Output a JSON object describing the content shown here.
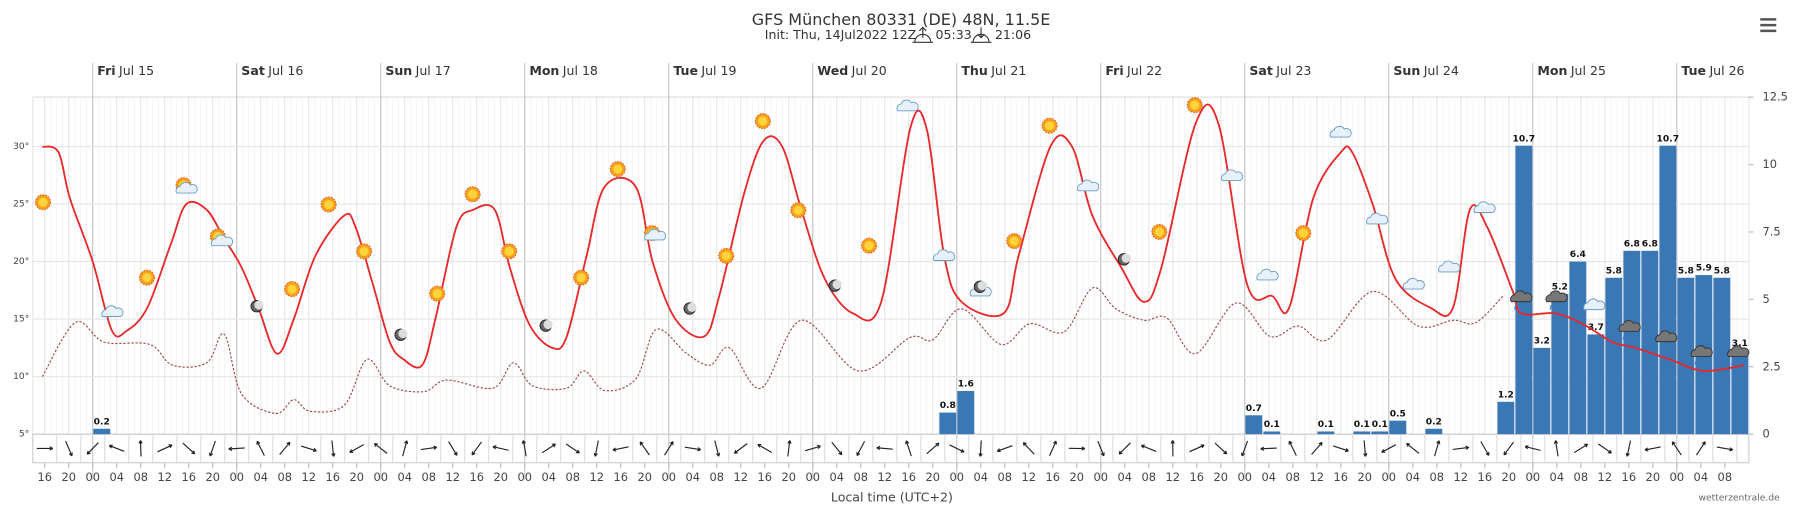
{
  "chart_data": {
    "type": "meteogram",
    "title": "GFS München 80331 (DE) 48N, 11.5E",
    "subtitle": "Init: Thu, 14Jul2022 12Z",
    "sunrise": "05:33",
    "sunset": "21:06",
    "x_label": "Local time (UTC+2)",
    "credit": "wetterzentrale.de",
    "xlim": [
      14,
      300
    ],
    "days": [
      {
        "value": 24,
        "weekday": "Fri",
        "date": "Jul 15"
      },
      {
        "value": 48,
        "weekday": "Sat",
        "date": "Jul 16"
      },
      {
        "value": 72,
        "weekday": "Sun",
        "date": "Jul 17"
      },
      {
        "value": 96,
        "weekday": "Mon",
        "date": "Jul 18"
      },
      {
        "value": 120,
        "weekday": "Tue",
        "date": "Jul 19"
      },
      {
        "value": 144,
        "weekday": "Wed",
        "date": "Jul 20"
      },
      {
        "value": 168,
        "weekday": "Thu",
        "date": "Jul 21"
      },
      {
        "value": 192,
        "weekday": "Fri",
        "date": "Jul 22"
      },
      {
        "value": 216,
        "weekday": "Sat",
        "date": "Jul 23"
      },
      {
        "value": 240,
        "weekday": "Sun",
        "date": "Jul 24"
      },
      {
        "value": 264,
        "weekday": "Mon",
        "date": "Jul 25"
      },
      {
        "value": 288,
        "weekday": "Tue",
        "date": "Jul 26"
      }
    ],
    "xticks": [
      {
        "value": 16,
        "label": "16"
      },
      {
        "value": 20,
        "label": "20"
      },
      {
        "value": 24,
        "label": "00"
      },
      {
        "value": 28,
        "label": "04"
      },
      {
        "value": 32,
        "label": "08"
      },
      {
        "value": 36,
        "label": "12"
      },
      {
        "value": 40,
        "label": "16"
      },
      {
        "value": 44,
        "label": "20"
      },
      {
        "value": 48,
        "label": "00"
      },
      {
        "value": 52,
        "label": "04"
      },
      {
        "value": 56,
        "label": "08"
      },
      {
        "value": 60,
        "label": "12"
      },
      {
        "value": 64,
        "label": "16"
      },
      {
        "value": 68,
        "label": "20"
      },
      {
        "value": 72,
        "label": "00"
      },
      {
        "value": 76,
        "label": "04"
      },
      {
        "value": 80,
        "label": "08"
      },
      {
        "value": 84,
        "label": "12"
      },
      {
        "value": 88,
        "label": "16"
      },
      {
        "value": 92,
        "label": "20"
      },
      {
        "value": 96,
        "label": "00"
      },
      {
        "value": 100,
        "label": "04"
      },
      {
        "value": 104,
        "label": "08"
      },
      {
        "value": 108,
        "label": "12"
      },
      {
        "value": 112,
        "label": "16"
      },
      {
        "value": 116,
        "label": "20"
      },
      {
        "value": 120,
        "label": "00"
      },
      {
        "value": 124,
        "label": "04"
      },
      {
        "value": 128,
        "label": "08"
      },
      {
        "value": 132,
        "label": "12"
      },
      {
        "value": 136,
        "label": "16"
      },
      {
        "value": 140,
        "label": "20"
      },
      {
        "value": 144,
        "label": "00"
      },
      {
        "value": 148,
        "label": "04"
      },
      {
        "value": 152,
        "label": "08"
      },
      {
        "value": 156,
        "label": "12"
      },
      {
        "value": 160,
        "label": "16"
      },
      {
        "value": 164,
        "label": "20"
      },
      {
        "value": 168,
        "label": "00"
      },
      {
        "value": 172,
        "label": "04"
      },
      {
        "value": 176,
        "label": "08"
      },
      {
        "value": 180,
        "label": "12"
      },
      {
        "value": 184,
        "label": "16"
      },
      {
        "value": 188,
        "label": "20"
      },
      {
        "value": 192,
        "label": "00"
      },
      {
        "value": 196,
        "label": "04"
      },
      {
        "value": 200,
        "label": "08"
      },
      {
        "value": 204,
        "label": "12"
      },
      {
        "value": 208,
        "label": "16"
      },
      {
        "value": 212,
        "label": "20"
      },
      {
        "value": 216,
        "label": "00"
      },
      {
        "value": 220,
        "label": "04"
      },
      {
        "value": 224,
        "label": "08"
      },
      {
        "value": 228,
        "label": "12"
      },
      {
        "value": 232,
        "label": "16"
      },
      {
        "value": 236,
        "label": "20"
      },
      {
        "value": 240,
        "label": "00"
      },
      {
        "value": 244,
        "label": "04"
      },
      {
        "value": 248,
        "label": "08"
      },
      {
        "value": 252,
        "label": "12"
      },
      {
        "value": 256,
        "label": "16"
      },
      {
        "value": 260,
        "label": "20"
      },
      {
        "value": 264,
        "label": "00"
      },
      {
        "value": 268,
        "label": "04"
      },
      {
        "value": 272,
        "label": "08"
      },
      {
        "value": 276,
        "label": "12"
      },
      {
        "value": 280,
        "label": "16"
      },
      {
        "value": 284,
        "label": "20"
      },
      {
        "value": 288,
        "label": "00"
      },
      {
        "value": 292,
        "label": "04"
      },
      {
        "value": 296,
        "label": "08"
      }
    ],
    "ylim": [
      5,
      34.3
    ],
    "yticks": [
      {
        "value": 5,
        "label": "5°"
      },
      {
        "value": 10,
        "label": "10°"
      },
      {
        "value": 15,
        "label": "15°"
      },
      {
        "value": 20,
        "label": "20°"
      },
      {
        "value": 25,
        "label": "25°"
      },
      {
        "value": 30,
        "label": "30°"
      }
    ],
    "y2lim": [
      0,
      12.5
    ],
    "y2ticks": [
      0,
      2.5,
      5,
      7.5,
      10,
      12.5
    ],
    "grid": true,
    "series": [
      {
        "kind": "bar",
        "axis": "y2",
        "color": "#3a78b5",
        "x": [
          25.5,
          166.5,
          169.5,
          217.5,
          220.5,
          229.5,
          235.5,
          238.5,
          241.5,
          247.5,
          259.5,
          262.5,
          265.5,
          268.5,
          271.5,
          274.5,
          277.5,
          280.5,
          283.5,
          286.5,
          289.5,
          292.5,
          295.5,
          298.5
        ],
        "values": [
          0.2,
          0.8,
          1.6,
          0.7,
          0.1,
          0.1,
          0.1,
          0.1,
          0.5,
          0.2,
          1.2,
          10.7,
          3.2,
          5.2,
          6.4,
          3.7,
          5.8,
          6.8,
          6.8,
          10.7,
          5.8,
          5.9,
          5.8,
          3.1
        ]
      },
      {
        "kind": "line",
        "style": "dotted",
        "color": "#9b4a4a",
        "x": [
          15.6,
          21.1,
          25.9,
          33.5,
          37.3,
          43,
          45.9,
          48.8,
          54.5,
          57.5,
          60.2,
          65.9,
          69.7,
          73.5,
          79.2,
          83,
          90.7,
          94.1,
          97.3,
          103,
          105.9,
          109.3,
          114.5,
          117.9,
          123,
          126.9,
          130.1,
          135.4,
          142.1,
          151.6,
          160.2,
          164,
          168.8,
          175.4,
          180.2,
          185.9,
          190.6,
          194.5,
          199.2,
          203,
          207.8,
          214.5,
          220.2,
          224.9,
          229.7,
          237.3,
          244.9,
          250.7,
          254.5,
          259.2
        ],
        "values": [
          10,
          14.7,
          13,
          12.8,
          11,
          11.2,
          13.7,
          8.5,
          6.8,
          8,
          7,
          7.5,
          11.5,
          9.2,
          8.7,
          9.7,
          9,
          11.2,
          9.2,
          9,
          10.5,
          8.8,
          9.8,
          14.1,
          12,
          11,
          12.5,
          9,
          14.9,
          10.5,
          13.4,
          13.2,
          15.9,
          12.8,
          14.6,
          13.9,
          17.7,
          15.9,
          14.9,
          15.1,
          12,
          16.4,
          13.5,
          14.4,
          13.2,
          17.4,
          14.4,
          14.9,
          14.7,
          17.1
        ]
      },
      {
        "kind": "line",
        "style": "solid",
        "color": "#e8282b",
        "x": [
          15.6,
          18.3,
          20.2,
          24,
          27.2,
          29.7,
          33.1,
          37,
          39.6,
          43,
          45.9,
          48.8,
          51.6,
          54.7,
          57.5,
          61.1,
          65.9,
          67.8,
          70.7,
          73.5,
          75.8,
          78.9,
          81.1,
          84.6,
          87.4,
          91,
          93.5,
          96.8,
          100.6,
          103,
          106.3,
          109.3,
          114.5,
          117.3,
          121.1,
          125.9,
          128.4,
          132.6,
          135.8,
          138.9,
          142.1,
          146,
          150.7,
          155.4,
          160.2,
          163,
          165.9,
          168.8,
          175.8,
          178.3,
          183.6,
          187.2,
          190.6,
          195.4,
          199.2,
          202.1,
          207.8,
          211.6,
          216.4,
          220.6,
          223.4,
          227.4,
          232,
          233.9,
          237.3,
          241.1,
          246.9,
          250.7,
          253.5,
          256.4,
          260.6,
          262.1,
          267.8,
          272.6,
          277.3,
          281.1,
          286.8,
          292.5,
          299.2
        ],
        "values": [
          30,
          29.5,
          25.5,
          20,
          14,
          14,
          16,
          21.5,
          25,
          24.5,
          22,
          19.5,
          16,
          12,
          15,
          20.5,
          24,
          23,
          18,
          13,
          11.5,
          11,
          15,
          23,
          24.5,
          24.5,
          19.5,
          14.5,
          12.5,
          13.5,
          20.5,
          26.5,
          26.5,
          20,
          15,
          13.5,
          17,
          26,
          30.5,
          30,
          24.5,
          18.5,
          15.5,
          16.5,
          31.5,
          31.5,
          20.5,
          16.5,
          15.5,
          20.5,
          30,
          30,
          24,
          19.5,
          16.5,
          19.5,
          32,
          32,
          18,
          17,
          16,
          25.5,
          29.5,
          29.5,
          25,
          18.5,
          16,
          16,
          24.5,
          23,
          17.5,
          15.5,
          15.5,
          14.5,
          13,
          12.5,
          11.5,
          10.5,
          11
        ]
      }
    ]
  }
}
